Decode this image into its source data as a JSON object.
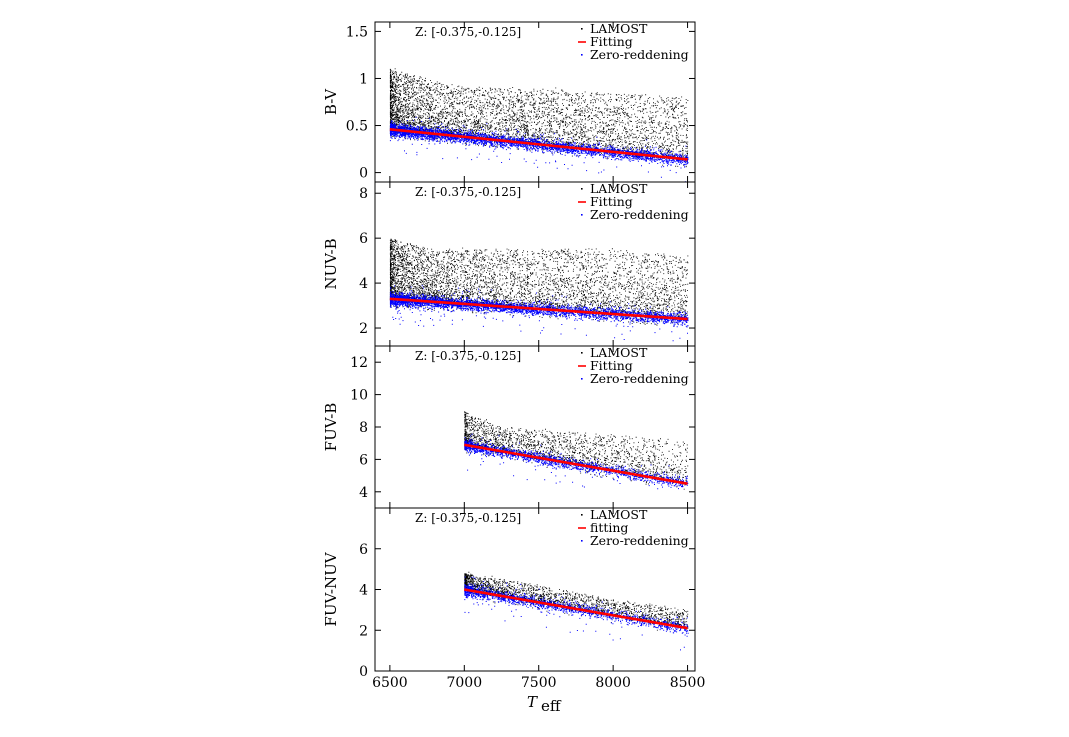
{
  "figure": {
    "xlabel_main": "T",
    "xlabel_sub": "eff"
  },
  "chart_data": [
    {
      "type": "scatter",
      "ylabel": "B-V",
      "annotation": "Z: [-0.375,-0.125]",
      "xlim": [
        6400,
        8550
      ],
      "ylim": [
        -0.1,
        1.6
      ],
      "yticks": [
        0,
        0.5,
        1,
        1.5
      ],
      "ytick_labels": [
        "0",
        "0.5",
        "1",
        "1.5"
      ],
      "xticks": [
        6500,
        7000,
        7500,
        8000,
        8500
      ],
      "x_start": 6500,
      "cloud": {
        "sample_x": [
          6500,
          6750,
          7000,
          7500,
          8000,
          8500
        ],
        "sample_upper_y": [
          1.1,
          1.0,
          0.9,
          0.9,
          0.85,
          0.8
        ]
      },
      "fit": {
        "x": [
          6500,
          8500
        ],
        "y": [
          0.46,
          0.14
        ]
      },
      "series": [
        {
          "name": "LAMOST",
          "color": "#000000"
        },
        {
          "name": "Fitting",
          "color": "#ff0000"
        },
        {
          "name": "Zero-reddening",
          "color": "#0000ff"
        }
      ]
    },
    {
      "type": "scatter",
      "ylabel": "NUV-B",
      "annotation": "Z: [-0.375,-0.125]",
      "xlim": [
        6400,
        8550
      ],
      "ylim": [
        1.2,
        8.5
      ],
      "yticks": [
        2,
        4,
        6,
        8
      ],
      "ytick_labels": [
        "2",
        "4",
        "6",
        "8"
      ],
      "xticks": [
        6500,
        7000,
        7500,
        8000,
        8500
      ],
      "x_start": 6500,
      "cloud": {
        "sample_x": [
          6500,
          6750,
          7000,
          7500,
          8000,
          8500
        ],
        "sample_upper_y": [
          6.0,
          5.5,
          5.5,
          5.5,
          5.5,
          5.2
        ]
      },
      "fit": {
        "x": [
          6500,
          8500
        ],
        "y": [
          3.3,
          2.4
        ]
      },
      "series": [
        {
          "name": "LAMOST",
          "color": "#000000"
        },
        {
          "name": "Fitting",
          "color": "#ff0000"
        },
        {
          "name": "Zero-reddening",
          "color": "#0000ff"
        }
      ]
    },
    {
      "type": "scatter",
      "ylabel": "FUV-B",
      "annotation": "Z: [-0.375,-0.125]",
      "xlim": [
        6400,
        8550
      ],
      "ylim": [
        3.0,
        13.0
      ],
      "yticks": [
        4,
        6,
        8,
        10,
        12
      ],
      "ytick_labels": [
        "4",
        "6",
        "8",
        "10",
        "12"
      ],
      "xticks": [
        6500,
        7000,
        7500,
        8000,
        8500
      ],
      "x_start": 7000,
      "cloud": {
        "sample_x": [
          7000,
          7250,
          7500,
          8000,
          8500
        ],
        "sample_upper_y": [
          9.0,
          8.0,
          7.8,
          7.5,
          7.2
        ]
      },
      "fit": {
        "x": [
          7000,
          8500
        ],
        "y": [
          6.9,
          4.5
        ]
      },
      "series": [
        {
          "name": "LAMOST",
          "color": "#000000"
        },
        {
          "name": "Fitting",
          "color": "#ff0000"
        },
        {
          "name": "Zero-reddening",
          "color": "#0000ff"
        }
      ]
    },
    {
      "type": "scatter",
      "ylabel": "FUV-NUV",
      "annotation": "Z: [-0.375,-0.125]",
      "xlim": [
        6400,
        8550
      ],
      "ylim": [
        0,
        8.0
      ],
      "yticks": [
        0,
        2,
        4,
        6
      ],
      "ytick_labels": [
        "0",
        "2",
        "4",
        "6"
      ],
      "xticks": [
        6500,
        7000,
        7500,
        8000,
        8500
      ],
      "xtick_labels": [
        "6500",
        "7000",
        "7500",
        "8000",
        "8500"
      ],
      "x_start": 7000,
      "cloud": {
        "sample_x": [
          7000,
          7500,
          8000,
          8500
        ],
        "sample_upper_y": [
          4.8,
          4.2,
          3.5,
          3.0
        ]
      },
      "fit": {
        "x": [
          7000,
          8500
        ],
        "y": [
          4.0,
          2.1
        ]
      },
      "series": [
        {
          "name": "LAMOST",
          "color": "#000000"
        },
        {
          "name": "fitting",
          "color": "#ff0000"
        },
        {
          "name": "Zero-reddening",
          "color": "#0000ff"
        }
      ]
    }
  ]
}
